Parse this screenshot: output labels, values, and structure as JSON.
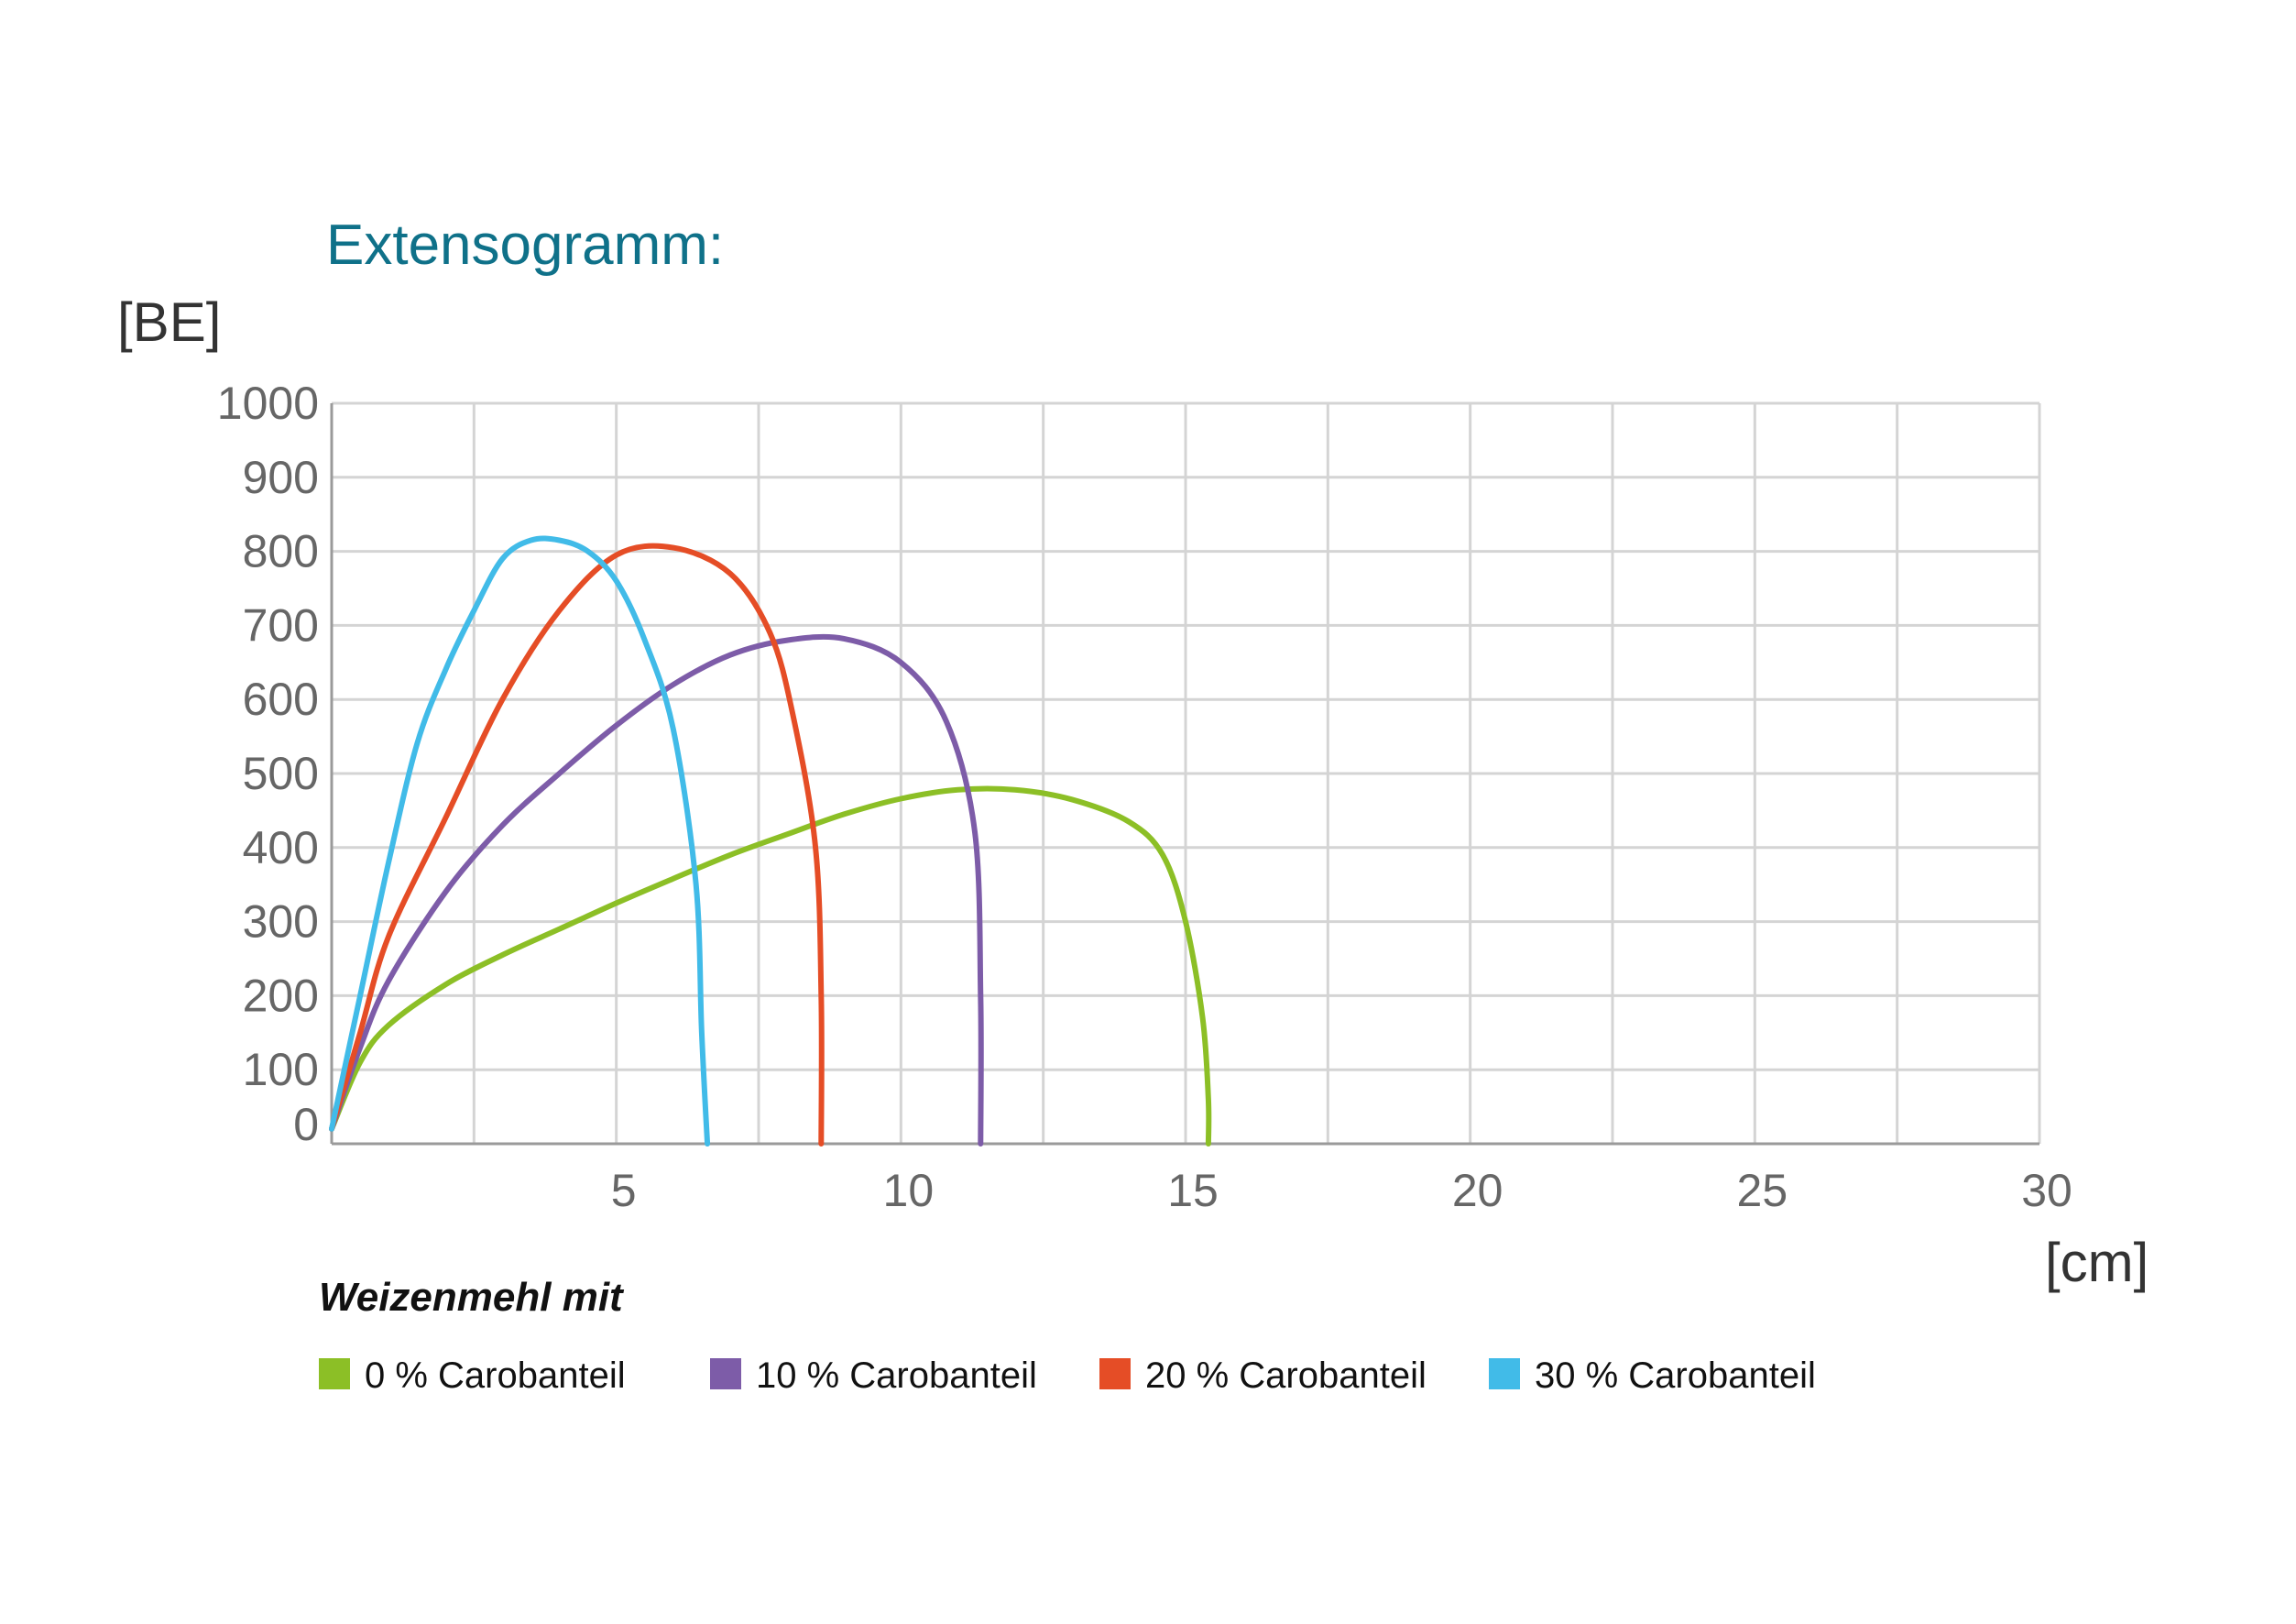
{
  "chart_data": {
    "type": "line",
    "title": "Extensogramm:",
    "ylabel": "[BE]",
    "xlabel": "[cm]",
    "xlim": [
      0,
      30
    ],
    "ylim": [
      0,
      1000
    ],
    "x_ticks": [
      "5",
      "10",
      "15",
      "20",
      "25",
      "30"
    ],
    "x_tick_values": [
      5,
      10,
      15,
      20,
      25,
      30
    ],
    "y_ticks": [
      "0",
      "100",
      "200",
      "300",
      "400",
      "500",
      "600",
      "700",
      "800",
      "900",
      "1000"
    ],
    "y_tick_values": [
      0,
      100,
      200,
      300,
      400,
      500,
      600,
      700,
      800,
      900,
      1000
    ],
    "grid": true,
    "legend_title": "Weizenmehl mit",
    "legend_position": "bottom",
    "series": [
      {
        "name": "0 % Carobanteil",
        "color": "#8cbf26",
        "points": [
          [
            0,
            20
          ],
          [
            0.5,
            110
          ],
          [
            1,
            160
          ],
          [
            2,
            215
          ],
          [
            3,
            255
          ],
          [
            4,
            290
          ],
          [
            5,
            325
          ],
          [
            6,
            358
          ],
          [
            7,
            390
          ],
          [
            8,
            418
          ],
          [
            9,
            445
          ],
          [
            10,
            466
          ],
          [
            11,
            478
          ],
          [
            12,
            478
          ],
          [
            13,
            465
          ],
          [
            14,
            435
          ],
          [
            14.6,
            390
          ],
          [
            15,
            300
          ],
          [
            15.3,
            170
          ],
          [
            15.4,
            60
          ],
          [
            15.4,
            0
          ]
        ]
      },
      {
        "name": "10 % Carobanteil",
        "color": "#7d5ca8",
        "points": [
          [
            0,
            20
          ],
          [
            0.5,
            130
          ],
          [
            1,
            220
          ],
          [
            2,
            340
          ],
          [
            3,
            430
          ],
          [
            4,
            500
          ],
          [
            5,
            565
          ],
          [
            6,
            620
          ],
          [
            7,
            660
          ],
          [
            8,
            680
          ],
          [
            9,
            682
          ],
          [
            10,
            650
          ],
          [
            10.8,
            570
          ],
          [
            11.3,
            420
          ],
          [
            11.4,
            200
          ],
          [
            11.4,
            0
          ]
        ]
      },
      {
        "name": "20 % Carobanteil",
        "color": "#e54d26",
        "points": [
          [
            0,
            20
          ],
          [
            0.5,
            150
          ],
          [
            1,
            280
          ],
          [
            2,
            440
          ],
          [
            3,
            600
          ],
          [
            4,
            720
          ],
          [
            5,
            795
          ],
          [
            6,
            805
          ],
          [
            7,
            770
          ],
          [
            7.7,
            690
          ],
          [
            8.1,
            580
          ],
          [
            8.5,
            400
          ],
          [
            8.6,
            200
          ],
          [
            8.6,
            0
          ]
        ]
      },
      {
        "name": "30 % Carobanteil",
        "color": "#41bbe8",
        "points": [
          [
            0,
            20
          ],
          [
            0.5,
            200
          ],
          [
            1,
            380
          ],
          [
            1.5,
            540
          ],
          [
            2,
            640
          ],
          [
            2.5,
            720
          ],
          [
            3,
            790
          ],
          [
            3.5,
            815
          ],
          [
            4,
            815
          ],
          [
            4.5,
            800
          ],
          [
            5,
            760
          ],
          [
            5.5,
            680
          ],
          [
            6,
            560
          ],
          [
            6.4,
            350
          ],
          [
            6.5,
            150
          ],
          [
            6.6,
            0
          ]
        ]
      }
    ]
  }
}
